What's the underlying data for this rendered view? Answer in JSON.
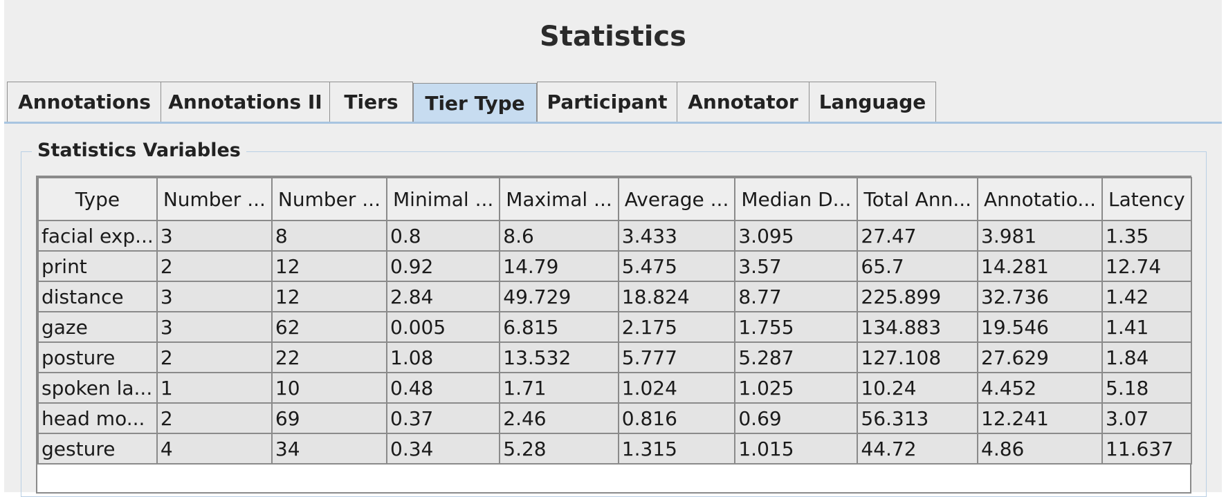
{
  "title": "Statistics",
  "tabs": [
    {
      "label": "Annotations",
      "active": false
    },
    {
      "label": "Annotations II",
      "active": false
    },
    {
      "label": "Tiers",
      "active": false
    },
    {
      "label": "Tier Type",
      "active": true
    },
    {
      "label": "Participant",
      "active": false
    },
    {
      "label": "Annotator",
      "active": false
    },
    {
      "label": "Language",
      "active": false
    }
  ],
  "group": {
    "label": "Statistics Variables"
  },
  "table": {
    "columns": [
      "Type",
      "Number ...",
      "Number ...",
      "Minimal ...",
      "Maximal ...",
      "Average ...",
      "Median D...",
      "Total Ann...",
      "Annotatio...",
      "Latency"
    ],
    "rows": [
      [
        "facial exp...",
        "3",
        "8",
        "0.8",
        "8.6",
        "3.433",
        "3.095",
        "27.47",
        "3.981",
        "1.35"
      ],
      [
        "print",
        "2",
        "12",
        "0.92",
        "14.79",
        "5.475",
        "3.57",
        "65.7",
        "14.281",
        "12.74"
      ],
      [
        "distance",
        "3",
        "12",
        "2.84",
        "49.729",
        "18.824",
        "8.77",
        "225.899",
        "32.736",
        "1.42"
      ],
      [
        "gaze",
        "3",
        "62",
        "0.005",
        "6.815",
        "2.175",
        "1.755",
        "134.883",
        "19.546",
        "1.41"
      ],
      [
        "posture",
        "2",
        "22",
        "1.08",
        "13.532",
        "5.777",
        "5.287",
        "127.108",
        "27.629",
        "1.84"
      ],
      [
        "spoken la...",
        "1",
        "10",
        "0.48",
        "1.71",
        "1.024",
        "1.025",
        "10.24",
        "4.452",
        "5.18"
      ],
      [
        "head mo...",
        "2",
        "69",
        "0.37",
        "2.46",
        "0.816",
        "0.69",
        "56.313",
        "12.241",
        "3.07"
      ],
      [
        "gesture",
        "4",
        "34",
        "0.34",
        "5.28",
        "1.315",
        "1.015",
        "44.72",
        "4.86",
        "11.637"
      ]
    ]
  }
}
